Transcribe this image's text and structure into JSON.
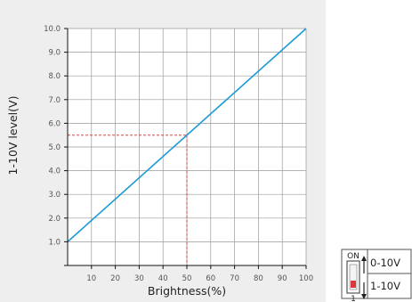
{
  "chart_data": {
    "type": "line",
    "xlabel": "Brightness(%)",
    "ylabel": "1-10V level(V)",
    "xlim": [
      0,
      100
    ],
    "ylim": [
      0,
      10
    ],
    "x_ticks": [
      10,
      20,
      30,
      40,
      50,
      60,
      70,
      80,
      90,
      100
    ],
    "x_tick_labels": [
      "10",
      "20",
      "30",
      "40",
      "50",
      "60",
      "70",
      "80",
      "90",
      "100"
    ],
    "y_ticks": [
      1,
      2,
      3,
      4,
      5,
      6,
      7,
      8,
      9,
      10
    ],
    "y_tick_labels": [
      "1.0",
      "2.0",
      "3.0",
      "4.0",
      "5.0",
      "6.0",
      "7.0",
      "8.0",
      "9.0",
      "10.0"
    ],
    "grid": true,
    "series": [
      {
        "x": [
          0,
          100
        ],
        "y": [
          1.0,
          10.0
        ],
        "color": "#1a9bd6"
      }
    ],
    "reference": {
      "x": 50,
      "y": 5.5,
      "color": "#d6453f",
      "style": "dashed"
    }
  },
  "dip_switch": {
    "on_label": "ON",
    "position_label": "1",
    "options": [
      "0-10V",
      "1-10V"
    ],
    "active_option": "1-10V",
    "knob_color": "#d63a3a"
  }
}
